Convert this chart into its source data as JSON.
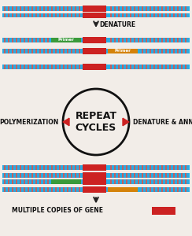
{
  "bg_color": "#f2ede8",
  "dna_color": "#29abe2",
  "stripe_color": "#c06060",
  "gene_color": "#cc2222",
  "primer_green": "#3a9a3a",
  "primer_orange": "#d4820a",
  "arrow_color": "#222222",
  "circle_color": "#111111",
  "triangle_color": "#cc2222",
  "text_color": "#111111",
  "label_denature": "DENATURE",
  "label_repeat": "REPEAT\nCYCLES",
  "label_polymerization": "POLYMERIZATION",
  "label_denature_anneal": "DENATURE & ANNEAL",
  "label_multiple": "MULTIPLE COPIES OF GENE",
  "label_primer1": "Primer",
  "label_primer2": "Primer",
  "figw": 2.44,
  "figh": 3.0,
  "dpi": 100
}
